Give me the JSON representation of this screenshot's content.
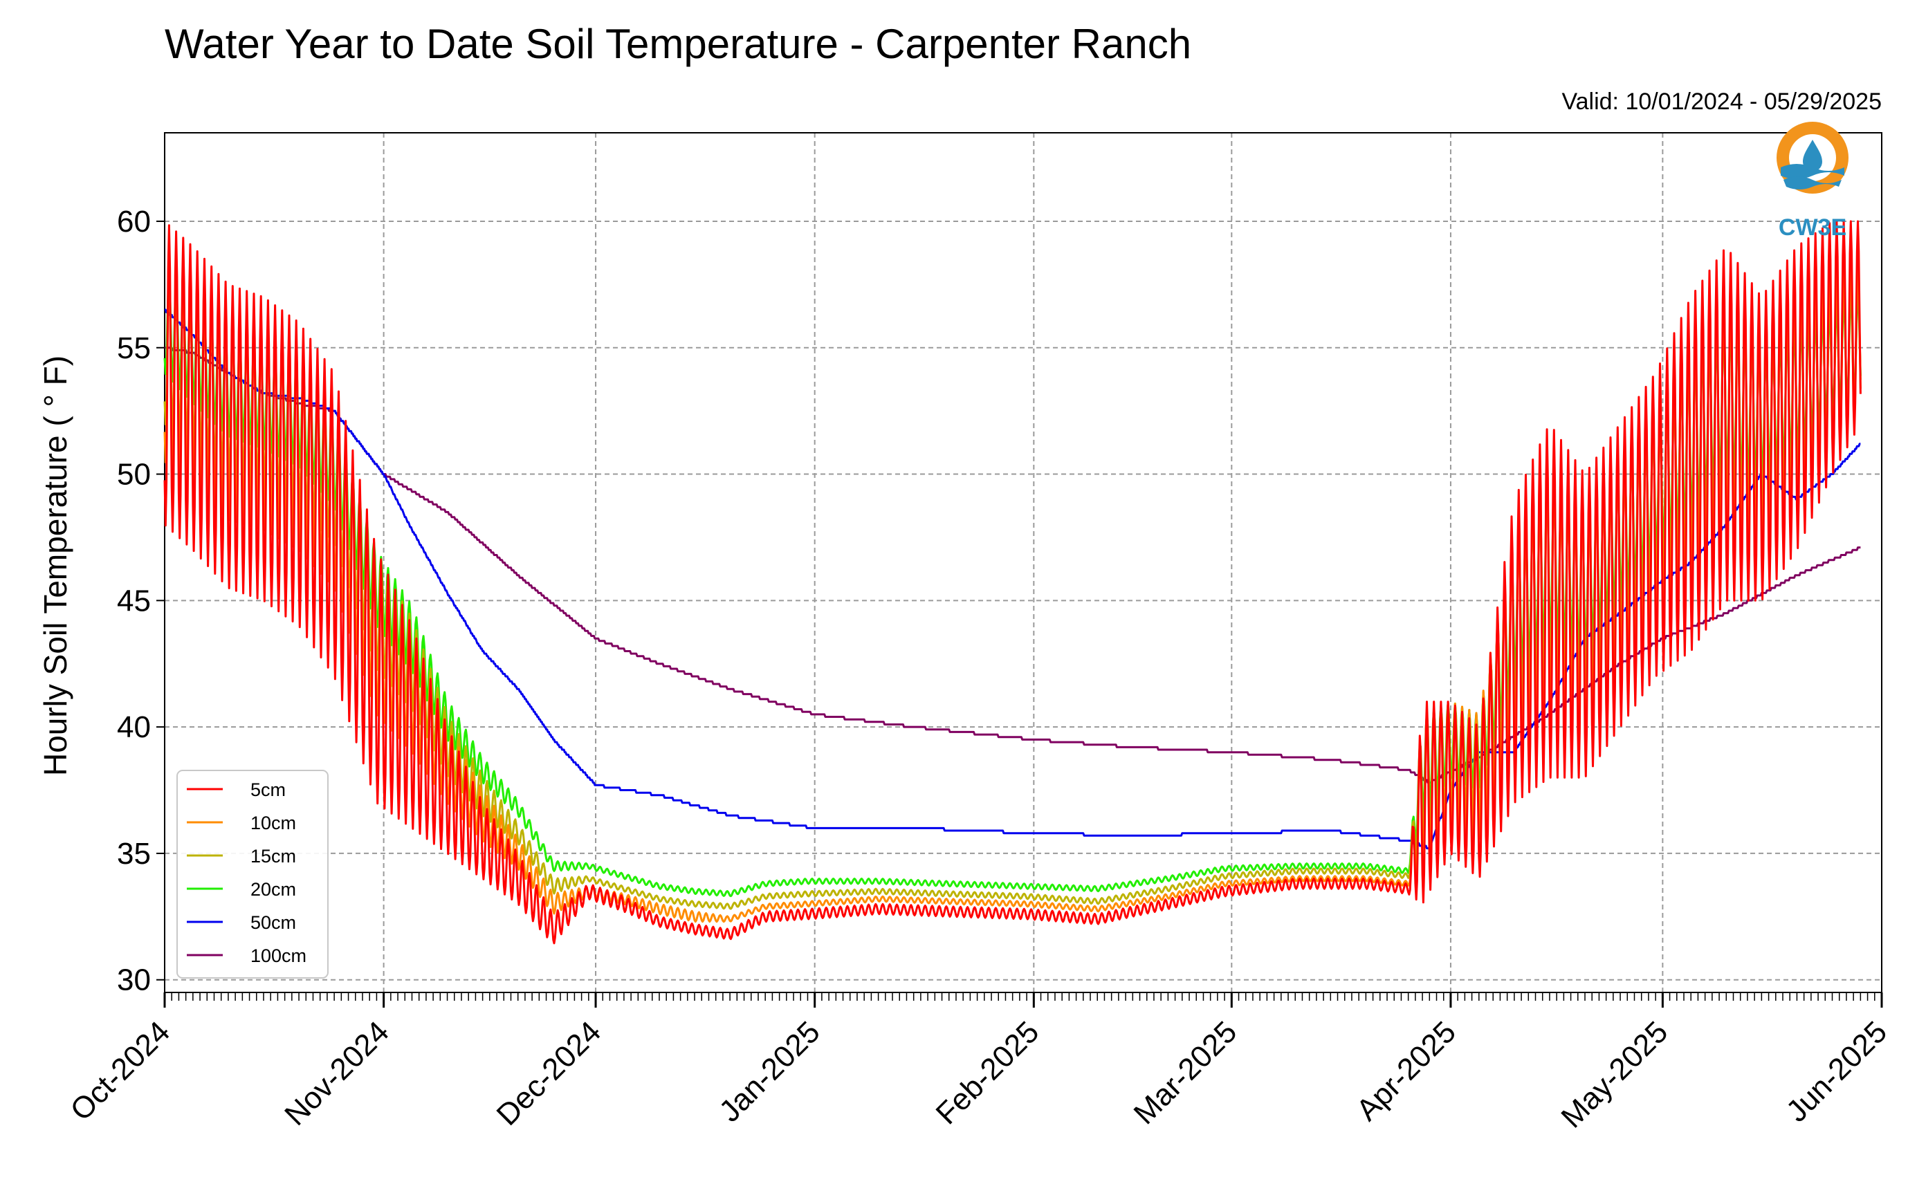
{
  "chart_data": {
    "type": "line",
    "title": "Water Year to Date Soil Temperature - Carpenter Ranch",
    "subtitle": "Valid: 10/01/2024 - 05/29/2025",
    "xlabel": "",
    "ylabel": "Hourly Soil Temperature ( ° F)",
    "xlim": [
      "2024-10-01",
      "2025-06-01"
    ],
    "ylim": [
      29.5,
      63.5
    ],
    "x_ticks": [
      "Oct-2024",
      "Nov-2024",
      "Dec-2024",
      "Jan-2025",
      "Feb-2025",
      "Mar-2025",
      "Apr-2025",
      "May-2025",
      "Jun-2025"
    ],
    "y_ticks": [
      30,
      35,
      40,
      45,
      50,
      55,
      60
    ],
    "grid": true,
    "legend_position": "lower-left",
    "logo_text": "CW3E",
    "series": [
      {
        "name": "5cm",
        "color": "#ff0000",
        "x": [
          "2024-10-01",
          "2024-10-05",
          "2024-10-10",
          "2024-10-15",
          "2024-10-20",
          "2024-10-25",
          "2024-10-31",
          "2024-11-05",
          "2024-11-10",
          "2024-11-15",
          "2024-11-20",
          "2024-11-25",
          "2024-11-30",
          "2024-12-05",
          "2024-12-10",
          "2024-12-15",
          "2024-12-20",
          "2024-12-25",
          "2024-12-31",
          "2025-01-10",
          "2025-01-20",
          "2025-01-31",
          "2025-02-10",
          "2025-02-20",
          "2025-02-28",
          "2025-03-10",
          "2025-03-20",
          "2025-03-26",
          "2025-03-28",
          "2025-04-01",
          "2025-04-05",
          "2025-04-10",
          "2025-04-15",
          "2025-04-20",
          "2025-04-25",
          "2025-04-30",
          "2025-05-05",
          "2025-05-10",
          "2025-05-15",
          "2025-05-20",
          "2025-05-25",
          "2025-05-29"
        ],
        "y": [
          54,
          53,
          51.5,
          51,
          50,
          48,
          42,
          40,
          37.5,
          35.5,
          34,
          32,
          33.5,
          33,
          32.3,
          32,
          31.8,
          32.5,
          32.6,
          32.8,
          32.7,
          32.6,
          32.4,
          33,
          33.5,
          33.8,
          33.8,
          33.6,
          37,
          38,
          37,
          43,
          45,
          44,
          46,
          48,
          50,
          52,
          51,
          53,
          55,
          56
        ],
        "amp": [
          6,
          6,
          6,
          6,
          6,
          6,
          5,
          4,
          2.5,
          1.5,
          1,
          0.6,
          0.3,
          0.3,
          0.2,
          0.2,
          0.2,
          0.2,
          0.2,
          0.2,
          0.2,
          0.2,
          0.2,
          0.2,
          0.2,
          0.2,
          0.2,
          0.2,
          4,
          3,
          3,
          6,
          7,
          6,
          6,
          6,
          7,
          7,
          6,
          6,
          5,
          4
        ]
      },
      {
        "name": "10cm",
        "color": "#ff8c00",
        "x": [
          "2024-10-01",
          "2024-10-05",
          "2024-10-10",
          "2024-10-15",
          "2024-10-20",
          "2024-10-25",
          "2024-10-31",
          "2024-11-05",
          "2024-11-10",
          "2024-11-15",
          "2024-11-20",
          "2024-11-25",
          "2024-11-30",
          "2024-12-05",
          "2024-12-10",
          "2024-12-15",
          "2024-12-20",
          "2024-12-25",
          "2024-12-31",
          "2025-01-10",
          "2025-01-20",
          "2025-01-31",
          "2025-02-10",
          "2025-02-20",
          "2025-02-28",
          "2025-03-10",
          "2025-03-20",
          "2025-03-26",
          "2025-03-28",
          "2025-04-01",
          "2025-04-05",
          "2025-04-10",
          "2025-04-15",
          "2025-04-20",
          "2025-04-25",
          "2025-04-30",
          "2025-05-05",
          "2025-05-10",
          "2025-05-15",
          "2025-05-20",
          "2025-05-25",
          "2025-05-29"
        ],
        "y": [
          54.5,
          53.5,
          52.2,
          51.8,
          51,
          49,
          43.5,
          41.5,
          38.5,
          36.5,
          35,
          33,
          33.5,
          33.2,
          32.8,
          32.5,
          32.4,
          32.9,
          33,
          33.2,
          33.1,
          33,
          32.8,
          33.3,
          33.8,
          34,
          34,
          33.8,
          37.5,
          38.5,
          38,
          43.5,
          45.5,
          44.5,
          46.5,
          48.5,
          50.5,
          52.5,
          51.5,
          53,
          54.5,
          55.5
        ],
        "amp": [
          4,
          4,
          4,
          4,
          4,
          3.5,
          3,
          2.5,
          1.5,
          1,
          0.6,
          0.4,
          0.2,
          0.2,
          0.2,
          0.2,
          0.1,
          0.1,
          0.1,
          0.1,
          0.1,
          0.1,
          0.1,
          0.1,
          0.1,
          0.1,
          0.1,
          0.1,
          3,
          2.5,
          2.5,
          4.5,
          5,
          4.5,
          4.5,
          4.5,
          5,
          5,
          4.5,
          4.5,
          3.5,
          3
        ]
      },
      {
        "name": "15cm",
        "color": "#bdb300",
        "x": [
          "2024-10-01",
          "2024-10-05",
          "2024-10-10",
          "2024-10-15",
          "2024-10-20",
          "2024-10-25",
          "2024-10-31",
          "2024-11-05",
          "2024-11-10",
          "2024-11-15",
          "2024-11-20",
          "2024-11-25",
          "2024-11-30",
          "2024-12-05",
          "2024-12-10",
          "2024-12-15",
          "2024-12-20",
          "2024-12-25",
          "2024-12-31",
          "2025-01-10",
          "2025-01-20",
          "2025-01-31",
          "2025-02-10",
          "2025-02-20",
          "2025-02-28",
          "2025-03-10",
          "2025-03-20",
          "2025-03-26",
          "2025-03-28",
          "2025-04-01",
          "2025-04-05",
          "2025-04-10",
          "2025-04-15",
          "2025-04-20",
          "2025-04-25",
          "2025-04-30",
          "2025-05-05",
          "2025-05-10",
          "2025-05-15",
          "2025-05-20",
          "2025-05-25",
          "2025-05-29"
        ],
        "y": [
          55,
          54,
          52.8,
          52.4,
          51.6,
          49.8,
          44.5,
          42.5,
          39.3,
          37.3,
          35.8,
          33.7,
          34,
          33.6,
          33.2,
          33,
          32.9,
          33.3,
          33.4,
          33.5,
          33.4,
          33.3,
          33.1,
          33.6,
          34.1,
          34.3,
          34.3,
          34.1,
          38,
          39,
          38.5,
          44,
          46,
          45,
          47,
          49,
          51,
          52.8,
          52,
          53.3,
          54.5,
          55.5
        ],
        "amp": [
          3,
          3,
          3,
          3,
          3,
          2.5,
          2.2,
          1.8,
          1.2,
          0.8,
          0.4,
          0.3,
          0.1,
          0.1,
          0.1,
          0.1,
          0.1,
          0.1,
          0.1,
          0.1,
          0.1,
          0.1,
          0.1,
          0.1,
          0.1,
          0.1,
          0.1,
          0.1,
          2.5,
          2,
          2,
          3.5,
          4,
          3.5,
          3.5,
          3.5,
          4,
          4,
          3.5,
          3.5,
          3,
          2.5
        ]
      },
      {
        "name": "20cm",
        "color": "#22ee00",
        "x": [
          "2024-10-01",
          "2024-10-05",
          "2024-10-10",
          "2024-10-15",
          "2024-10-20",
          "2024-10-25",
          "2024-10-31",
          "2024-11-05",
          "2024-11-10",
          "2024-11-15",
          "2024-11-20",
          "2024-11-25",
          "2024-11-30",
          "2024-12-05",
          "2024-12-10",
          "2024-12-15",
          "2024-12-20",
          "2024-12-25",
          "2024-12-31",
          "2025-01-10",
          "2025-01-20",
          "2025-01-31",
          "2025-02-10",
          "2025-02-20",
          "2025-02-28",
          "2025-03-10",
          "2025-03-20",
          "2025-03-26",
          "2025-03-28",
          "2025-04-01",
          "2025-04-05",
          "2025-04-10",
          "2025-04-15",
          "2025-04-20",
          "2025-04-25",
          "2025-04-30",
          "2025-05-05",
          "2025-05-10",
          "2025-05-15",
          "2025-05-20",
          "2025-05-25",
          "2025-05-29"
        ],
        "y": [
          56,
          54.8,
          53.5,
          53,
          52.3,
          50.5,
          45.5,
          43.5,
          40.3,
          38.3,
          36.8,
          34.5,
          34.5,
          34.1,
          33.7,
          33.5,
          33.4,
          33.8,
          33.9,
          33.9,
          33.8,
          33.7,
          33.6,
          34,
          34.4,
          34.5,
          34.5,
          34.3,
          38.5,
          39.5,
          39,
          44.5,
          46.5,
          45.5,
          47.5,
          49.3,
          51.3,
          53,
          52.3,
          53.3,
          54.5,
          55.3
        ],
        "amp": [
          2,
          2,
          2,
          2,
          2,
          1.8,
          1.5,
          1.3,
          0.8,
          0.5,
          0.3,
          0.2,
          0.1,
          0.1,
          0.1,
          0.1,
          0.1,
          0.1,
          0.1,
          0.1,
          0.1,
          0.1,
          0.1,
          0.1,
          0.1,
          0.1,
          0.1,
          0.1,
          2,
          1.5,
          1.5,
          2.5,
          3,
          2.5,
          2.5,
          2.5,
          3,
          3,
          2.5,
          2.5,
          2,
          2
        ]
      },
      {
        "name": "50cm",
        "color": "#0000ee",
        "x": [
          "2024-10-01",
          "2024-10-05",
          "2024-10-10",
          "2024-10-15",
          "2024-10-20",
          "2024-10-25",
          "2024-11-01",
          "2024-11-05",
          "2024-11-10",
          "2024-11-15",
          "2024-11-20",
          "2024-11-25",
          "2024-12-01",
          "2024-12-10",
          "2024-12-20",
          "2025-01-01",
          "2025-01-15",
          "2025-02-01",
          "2025-02-15",
          "2025-03-01",
          "2025-03-15",
          "2025-03-26",
          "2025-03-29",
          "2025-04-01",
          "2025-04-05",
          "2025-04-10",
          "2025-04-15",
          "2025-04-20",
          "2025-04-25",
          "2025-05-01",
          "2025-05-05",
          "2025-05-10",
          "2025-05-15",
          "2025-05-20",
          "2025-05-25",
          "2025-05-29"
        ],
        "y": [
          56.5,
          55.5,
          54,
          53.2,
          53,
          52.5,
          50,
          47.8,
          45.3,
          43,
          41.5,
          39.5,
          37.7,
          37.3,
          36.5,
          36,
          36,
          35.8,
          35.7,
          35.8,
          35.9,
          35.5,
          35.2,
          37.5,
          39,
          39,
          41,
          43.5,
          44.5,
          45.8,
          46.5,
          48,
          50,
          49,
          50,
          51.2
        ]
      },
      {
        "name": "100cm",
        "color": "#800060",
        "x": [
          "2024-10-01",
          "2024-10-05",
          "2024-10-10",
          "2024-10-15",
          "2024-10-20",
          "2024-10-25",
          "2024-11-01",
          "2024-11-10",
          "2024-11-20",
          "2024-12-01",
          "2024-12-10",
          "2024-12-20",
          "2025-01-01",
          "2025-01-15",
          "2025-02-01",
          "2025-02-15",
          "2025-03-01",
          "2025-03-15",
          "2025-03-26",
          "2025-03-29",
          "2025-04-05",
          "2025-04-15",
          "2025-04-25",
          "2025-05-01",
          "2025-05-10",
          "2025-05-20",
          "2025-05-29"
        ],
        "y": [
          55,
          54.8,
          54,
          53.2,
          52.8,
          52.5,
          50,
          48.5,
          46,
          43.5,
          42.5,
          41.5,
          40.5,
          40,
          39.5,
          39.2,
          39,
          38.7,
          38.3,
          37.8,
          38.8,
          40.5,
          42.5,
          43.5,
          44.5,
          46,
          47.1
        ]
      }
    ]
  }
}
